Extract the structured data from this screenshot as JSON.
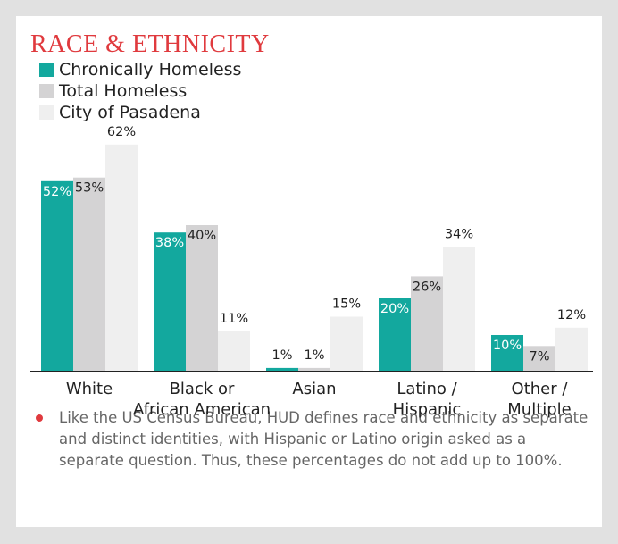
{
  "chart_data": {
    "type": "bar",
    "title": "RACE & ETHNICITY",
    "categories": [
      "White",
      "Black or\nAfrican American",
      "Asian",
      "Latino /\nHispanic",
      "Other /\nMultiple"
    ],
    "series": [
      {
        "name": "Chronically Homeless",
        "color": "#13a89e",
        "values": [
          52,
          38,
          1,
          20,
          10
        ],
        "value_labels": [
          "52%",
          "38%",
          "1%",
          "20%",
          "10%"
        ]
      },
      {
        "name": "Total Homeless",
        "color": "#d4d3d4",
        "values": [
          53,
          40,
          1,
          26,
          7
        ],
        "value_labels": [
          "53%",
          "40%",
          "1%",
          "26%",
          "7%"
        ]
      },
      {
        "name": "City of Pasadena",
        "color": "#efefef",
        "values": [
          62,
          11,
          15,
          34,
          12
        ],
        "value_labels": [
          "62%",
          "11%",
          "15%",
          "34%",
          "12%"
        ]
      }
    ],
    "note": "Like the US Census Bureau, HUD defines race and ethnicity as separate and distinct identities, with Hispanic or Latino origin asked as a separate question. Thus, these percentages do not add up to 100%."
  }
}
